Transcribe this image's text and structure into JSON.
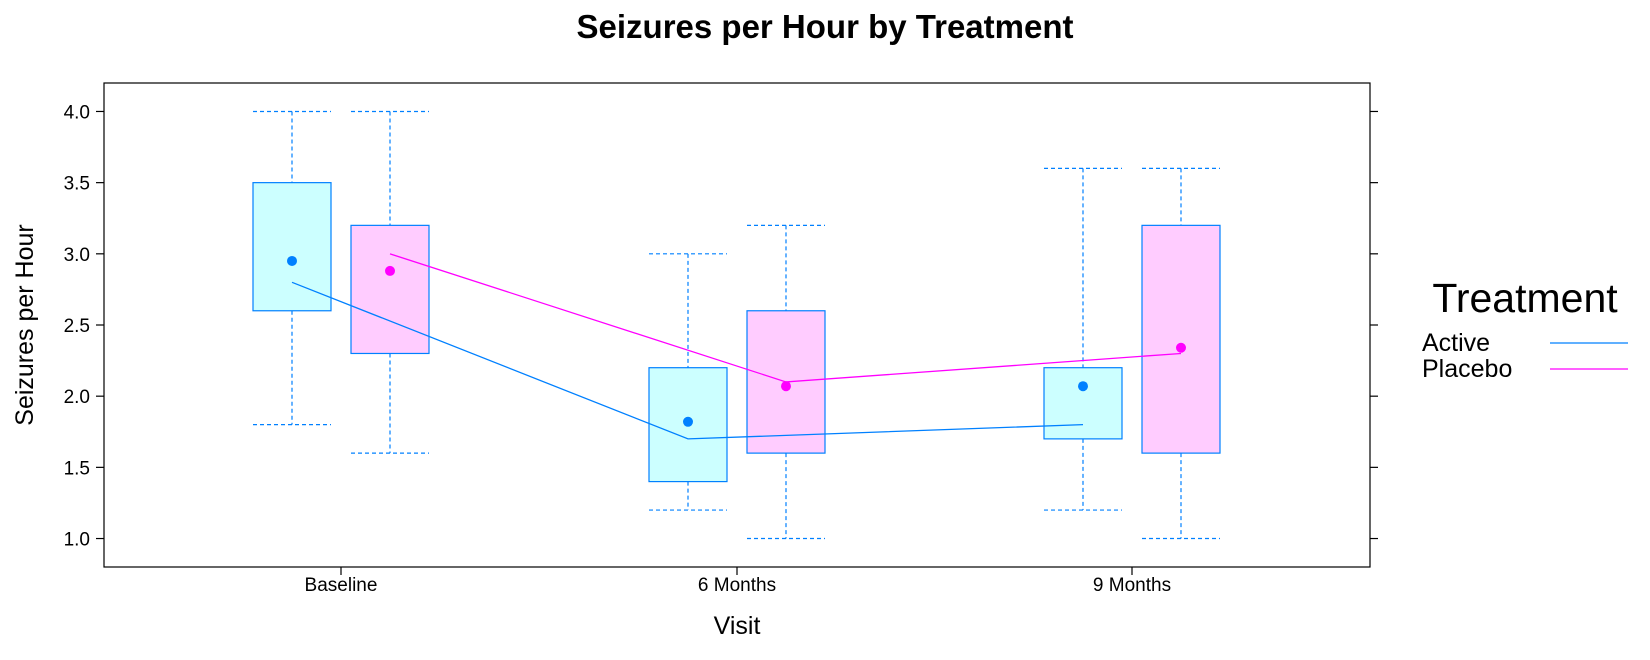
{
  "chart_data": {
    "type": "box",
    "title": "Seizures per Hour by Treatment",
    "xlabel": "Visit",
    "ylabel": "Seizures per Hour",
    "ylim": [
      0.8,
      4.2
    ],
    "yticks": [
      "1.0",
      "1.5",
      "2.0",
      "2.5",
      "3.0",
      "3.5",
      "4.0"
    ],
    "categories": [
      "Baseline",
      "6 Months",
      "9 Months"
    ],
    "legend": {
      "title": "Treatment",
      "placement": "right"
    },
    "series": [
      {
        "name": "Active",
        "fill": "#ccffff",
        "stroke": "#0080ff",
        "line_color": "#0080ff",
        "boxes": [
          {
            "min": 1.8,
            "q1": 2.6,
            "median": 2.95,
            "q3": 3.5,
            "max": 4.0
          },
          {
            "min": 1.2,
            "q1": 1.4,
            "median": 1.82,
            "q3": 2.2,
            "max": 3.0
          },
          {
            "min": 1.2,
            "q1": 1.7,
            "median": 2.07,
            "q3": 2.2,
            "max": 3.6
          }
        ],
        "means": [
          2.8,
          1.7,
          1.8
        ]
      },
      {
        "name": "Placebo",
        "fill": "#ffccff",
        "stroke": "#0080ff",
        "line_color": "#ff00ff",
        "boxes": [
          {
            "min": 1.6,
            "q1": 2.3,
            "median": 2.88,
            "q3": 3.2,
            "max": 4.0
          },
          {
            "min": 1.0,
            "q1": 1.6,
            "median": 2.07,
            "q3": 2.6,
            "max": 3.2
          },
          {
            "min": 1.0,
            "q1": 1.6,
            "median": 2.34,
            "q3": 3.2,
            "max": 3.6
          }
        ],
        "means": [
          3.0,
          2.1,
          2.3
        ]
      }
    ]
  }
}
